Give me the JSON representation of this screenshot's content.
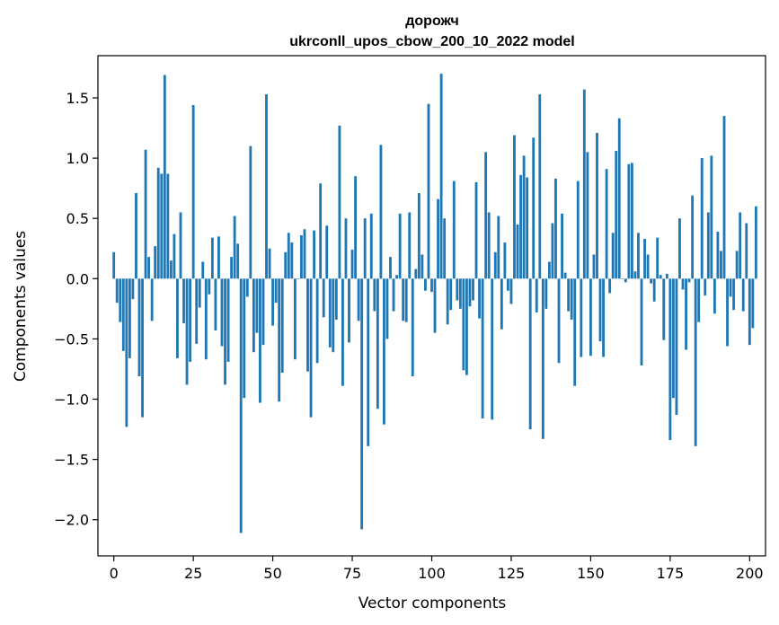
{
  "chart_data": {
    "type": "bar",
    "title": "дорожч",
    "subtitle": "ukrconll_upos_cbow_200_10_2022 model",
    "xlabel": "Vector components",
    "ylabel": "Components values",
    "xlim": [
      -5,
      205
    ],
    "ylim": [
      -2.3,
      1.85
    ],
    "xticks": [
      0,
      25,
      50,
      75,
      100,
      125,
      150,
      175,
      200
    ],
    "xtick_labels": [
      "0",
      "25",
      "50",
      "75",
      "100",
      "125",
      "150",
      "175",
      "200"
    ],
    "yticks": [
      -2.0,
      -1.5,
      -1.0,
      -0.5,
      0.0,
      0.5,
      1.0,
      1.5
    ],
    "ytick_labels": [
      "−2.0",
      "−1.5",
      "−1.0",
      "−0.5",
      "0.0",
      "0.5",
      "1.0",
      "1.5"
    ],
    "grid": false,
    "legend": "none",
    "bar_color": "#1f77b4",
    "values": [
      0.22,
      -0.2,
      -0.36,
      -0.6,
      -1.23,
      -0.66,
      -0.17,
      0.71,
      -0.81,
      -1.15,
      1.07,
      0.18,
      -0.35,
      0.27,
      0.92,
      0.87,
      1.69,
      0.87,
      0.15,
      0.37,
      -0.66,
      0.55,
      -0.37,
      -0.88,
      -0.69,
      1.44,
      -0.54,
      -0.24,
      0.14,
      -0.67,
      -0.13,
      0.34,
      -0.43,
      0.35,
      -0.56,
      -0.88,
      -0.69,
      0.18,
      0.52,
      0.29,
      -2.11,
      -0.99,
      -0.15,
      1.1,
      -0.61,
      -0.45,
      -1.03,
      -0.55,
      1.53,
      0.25,
      -0.39,
      -0.2,
      -1.02,
      -0.78,
      0.22,
      0.38,
      0.3,
      -0.67,
      0.0,
      0.36,
      0.41,
      -0.77,
      -1.15,
      0.4,
      -0.7,
      0.79,
      -0.32,
      0.44,
      -0.57,
      -0.61,
      -0.34,
      1.27,
      -0.89,
      0.5,
      -0.53,
      0.24,
      0.85,
      -0.35,
      -2.08,
      0.5,
      -1.39,
      0.54,
      -0.27,
      -1.08,
      1.11,
      -1.21,
      -0.5,
      0.18,
      -0.27,
      0.03,
      0.54,
      -0.35,
      -0.36,
      0.55,
      -0.81,
      0.08,
      0.71,
      0.2,
      -0.1,
      1.45,
      -0.11,
      -0.45,
      0.66,
      1.7,
      0.5,
      -0.38,
      -0.26,
      0.81,
      -0.18,
      -0.25,
      -0.76,
      -0.8,
      -0.23,
      -0.18,
      0.8,
      -0.33,
      -1.16,
      1.05,
      0.55,
      -1.17,
      0.22,
      0.52,
      -0.42,
      0.3,
      -0.1,
      -0.21,
      1.19,
      0.45,
      0.86,
      1.02,
      0.84,
      -1.25,
      1.17,
      -0.28,
      1.53,
      -1.33,
      -0.25,
      0.14,
      0.46,
      0.83,
      -0.7,
      0.54,
      0.05,
      -0.27,
      -0.34,
      -0.89,
      0.81,
      -0.65,
      1.57,
      1.05,
      -0.64,
      0.2,
      1.21,
      -0.52,
      -0.65,
      0.91,
      -0.12,
      0.38,
      1.06,
      1.33,
      0.0,
      -0.03,
      0.95,
      0.96,
      0.06,
      0.38,
      -0.72,
      0.33,
      0.2,
      -0.04,
      -0.19,
      0.34,
      0.03,
      -0.51,
      0.04,
      -1.34,
      -0.99,
      -1.13,
      0.5,
      -0.09,
      -0.59,
      -0.03,
      0.69,
      -1.39,
      -0.36,
      1.0,
      -0.14,
      0.55,
      1.02,
      -0.29,
      0.39,
      0.23,
      1.35,
      -0.56,
      -0.15,
      -0.26,
      0.23,
      0.55,
      -0.27,
      0.46,
      -0.55,
      -0.41,
      0.6
    ]
  }
}
